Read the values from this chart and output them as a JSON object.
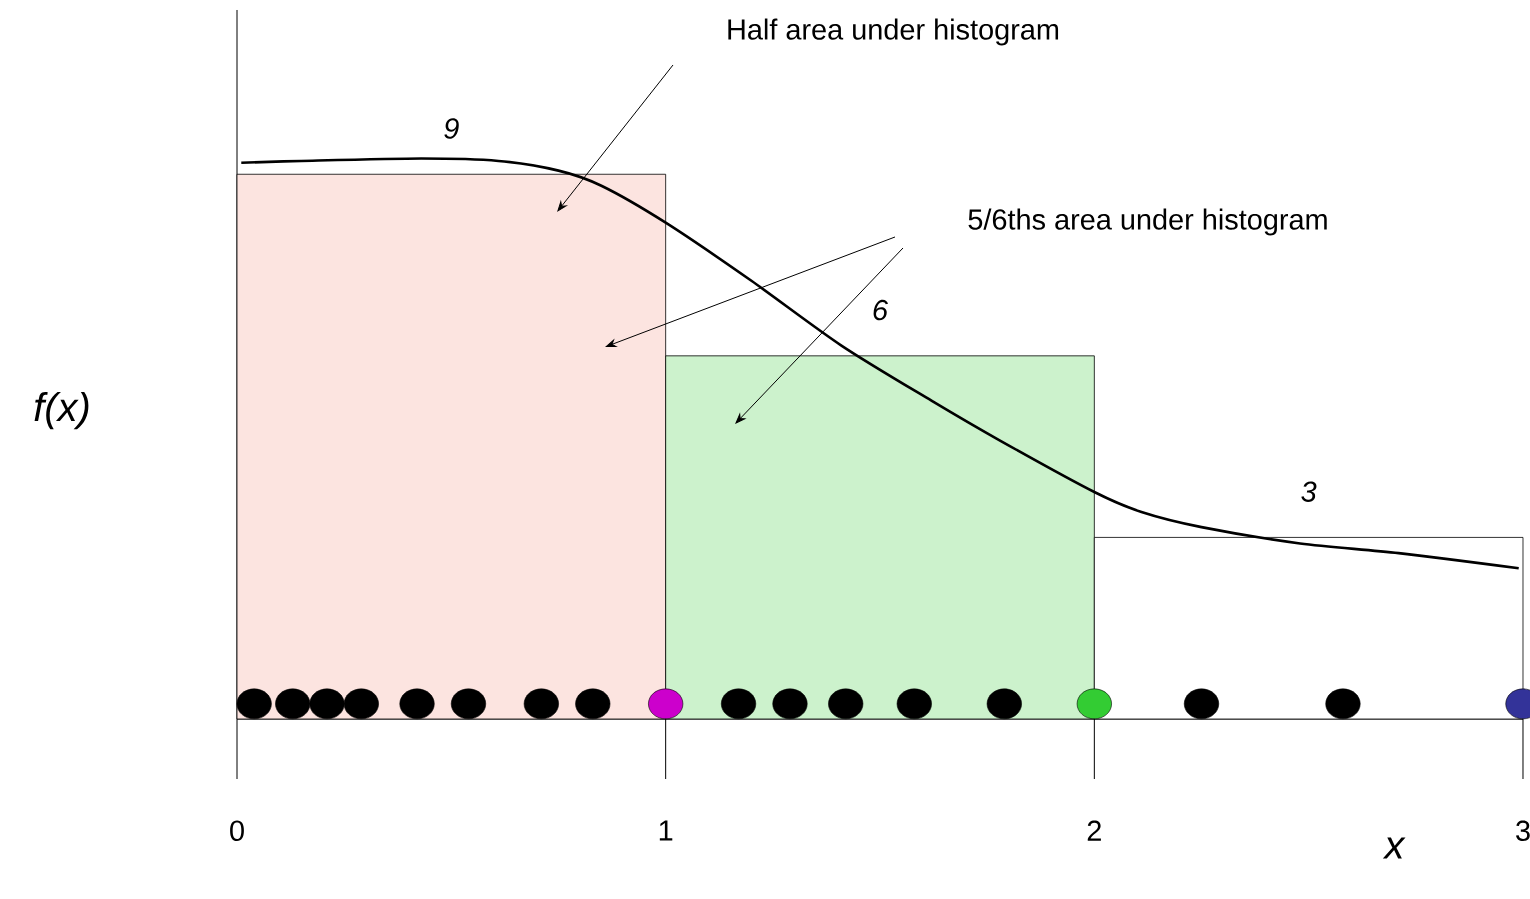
{
  "chart_data": {
    "type": "histogram",
    "xlabel": "x",
    "ylabel": "f(x)",
    "bins": [
      0,
      1,
      2,
      3
    ],
    "values": [
      9,
      6,
      3
    ],
    "colors": [
      "#fce4e0",
      "#ccf2cc",
      "#ffffff"
    ],
    "value_labels": [
      "9",
      "6",
      "3"
    ],
    "xlim": [
      0,
      3
    ],
    "xticks": [
      0,
      1,
      2,
      3
    ],
    "grid": false,
    "annotations": [
      "Half area under histogram",
      "5/6ths area under histogram"
    ],
    "series": [
      {
        "type": "line",
        "color": "#000000",
        "line_style": "solid",
        "x": [
          0.01,
          0.15,
          0.43,
          0.61,
          0.75,
          0.85,
          1.0,
          1.2,
          1.41,
          1.62,
          1.78,
          2.0,
          2.11,
          2.25,
          2.48,
          2.71,
          2.99
        ],
        "values": [
          9.19,
          9.22,
          9.26,
          9.22,
          9.06,
          8.81,
          8.2,
          7.24,
          6.17,
          5.26,
          4.6,
          3.75,
          3.42,
          3.17,
          2.9,
          2.74,
          2.49
        ]
      },
      {
        "type": "scatter",
        "marker": "circle",
        "x": [
          0.04,
          0.13,
          0.21,
          0.29,
          0.42,
          0.54,
          0.71,
          0.83,
          1.0,
          1.17,
          1.29,
          1.42,
          1.58,
          1.79,
          2.0,
          2.25,
          2.58,
          3.0
        ],
        "values": [
          0.25,
          0.25,
          0.25,
          0.25,
          0.25,
          0.25,
          0.25,
          0.25,
          0.25,
          0.25,
          0.25,
          0.25,
          0.25,
          0.25,
          0.25,
          0.25,
          0.25,
          0.25
        ],
        "colors": [
          "#000000",
          "#000000",
          "#000000",
          "#000000",
          "#000000",
          "#000000",
          "#000000",
          "#000000",
          "#cc00cc",
          "#000000",
          "#000000",
          "#000000",
          "#000000",
          "#000000",
          "#33cc33",
          "#000000",
          "#000000",
          "#333399"
        ]
      }
    ]
  }
}
